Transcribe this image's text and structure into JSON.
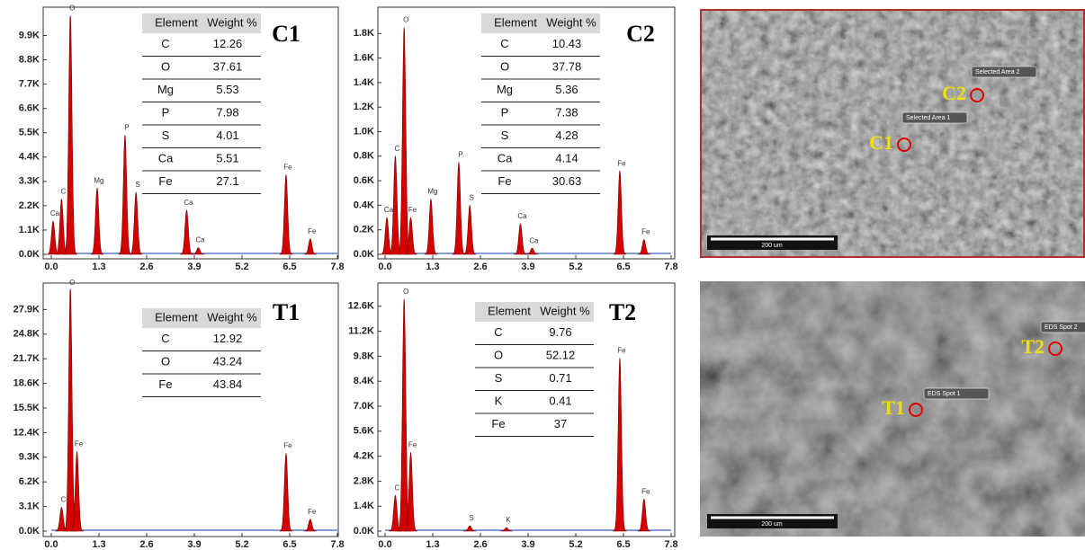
{
  "chart_data": [
    {
      "type": "spectrum",
      "label": "C1",
      "color": "#d40000",
      "xlim": [
        0,
        7.8
      ],
      "xticks": [
        {
          "value": 0,
          "label": "0.0"
        },
        1.3,
        2.6,
        3.9,
        5.2,
        6.5,
        7.8
      ],
      "ylim": [
        0,
        11100
      ],
      "yticks": [
        {
          "value": 0,
          "label": "0.0K"
        },
        {
          "value": 1100,
          "label": "1.1K"
        },
        {
          "value": 2200,
          "label": "2.2K"
        },
        {
          "value": 3300,
          "label": "3.3K"
        },
        {
          "value": 4400,
          "label": "4.4K"
        },
        {
          "value": 5500,
          "label": "5.5K"
        },
        {
          "value": 6600,
          "label": "6.6K"
        },
        {
          "value": 7700,
          "label": "7.7K"
        },
        {
          "value": 8800,
          "label": "8.8K"
        },
        {
          "value": 9900,
          "label": "9.9K"
        }
      ],
      "peaks": {
        "x": [
          0.05,
          0.28,
          0.52,
          1.25,
          2.01,
          2.31,
          3.69,
          4.01,
          6.4,
          7.06
        ],
        "values": [
          1500,
          2500,
          10800,
          3000,
          5400,
          2800,
          2000,
          300,
          3600,
          700
        ],
        "labels": [
          "Ca",
          "C",
          "O",
          "Mg",
          "P",
          "S",
          "Ca",
          "Ca",
          "Fe",
          "Fe"
        ]
      },
      "table": {
        "header": [
          "Element",
          "Weight %"
        ],
        "rows": [
          [
            "C",
            12.26
          ],
          [
            "O",
            37.61
          ],
          [
            "Mg",
            5.53
          ],
          [
            "P",
            7.98
          ],
          [
            "S",
            4.01
          ],
          [
            "Ca",
            5.51
          ],
          [
            "Fe",
            27.1
          ]
        ]
      }
    },
    {
      "type": "spectrum",
      "label": "C2",
      "color": "#d40000",
      "xlim": [
        0,
        7.8
      ],
      "xticks": [
        {
          "value": 0,
          "label": "0.0"
        },
        1.3,
        2.6,
        3.9,
        5.2,
        6.5,
        7.8
      ],
      "ylim": [
        0,
        2000
      ],
      "yticks": [
        {
          "value": 0,
          "label": "0.0K"
        },
        {
          "value": 200,
          "label": "0.2K"
        },
        {
          "value": 400,
          "label": "0.4K"
        },
        {
          "value": 600,
          "label": "0.6K"
        },
        {
          "value": 800,
          "label": "0.8K"
        },
        {
          "value": 1000,
          "label": "1.0K"
        },
        {
          "value": 1200,
          "label": "1.2K"
        },
        {
          "value": 1400,
          "label": "1.4K"
        },
        {
          "value": 1600,
          "label": "1.6K"
        },
        {
          "value": 1800,
          "label": "1.8K"
        }
      ],
      "peaks": {
        "x": [
          0.05,
          0.28,
          0.52,
          0.7,
          1.25,
          2.01,
          2.31,
          3.69,
          4.01,
          6.4,
          7.06
        ],
        "values": [
          300,
          800,
          1850,
          300,
          450,
          750,
          400,
          250,
          50,
          680,
          120
        ],
        "labels": [
          "Ca",
          "C",
          "O",
          "Fe",
          "Mg",
          "P",
          "S",
          "Ca",
          "Ca",
          "Fe",
          "Fe"
        ]
      },
      "table": {
        "header": [
          "Element",
          "Weight %"
        ],
        "rows": [
          [
            "C",
            10.43
          ],
          [
            "O",
            37.78
          ],
          [
            "Mg",
            5.36
          ],
          [
            "P",
            7.38
          ],
          [
            "S",
            4.28
          ],
          [
            "Ca",
            4.14
          ],
          [
            "Fe",
            30.63
          ]
        ]
      }
    },
    {
      "type": "spectrum",
      "label": "T1",
      "color": "#d40000",
      "xlim": [
        0,
        7.8
      ],
      "xticks": [
        {
          "value": 0,
          "label": "0.0"
        },
        1.3,
        2.6,
        3.9,
        5.2,
        6.5,
        7.8
      ],
      "ylim": [
        0,
        31000
      ],
      "yticks": [
        {
          "value": 0,
          "label": "0.0K"
        },
        {
          "value": 3100,
          "label": "3.1K"
        },
        {
          "value": 6200,
          "label": "6.2K"
        },
        {
          "value": 9300,
          "label": "9.3K"
        },
        {
          "value": 12400,
          "label": "12.4K"
        },
        {
          "value": 15500,
          "label": "15.5K"
        },
        {
          "value": 18600,
          "label": "18.6K"
        },
        {
          "value": 21700,
          "label": "21.7K"
        },
        {
          "value": 24800,
          "label": "24.8K"
        },
        {
          "value": 27900,
          "label": "27.9K"
        }
      ],
      "peaks": {
        "x": [
          0.28,
          0.52,
          0.7,
          6.4,
          7.06
        ],
        "values": [
          3000,
          30500,
          10000,
          9800,
          1500
        ],
        "labels": [
          "C",
          "O",
          "Fe",
          "Fe",
          "Fe"
        ]
      },
      "table": {
        "header": [
          "Element",
          "Weight %"
        ],
        "rows": [
          [
            "C",
            12.92
          ],
          [
            "O",
            43.24
          ],
          [
            "Fe",
            43.84
          ]
        ]
      }
    },
    {
      "type": "spectrum",
      "label": "T2",
      "color": "#d40000",
      "xlim": [
        0,
        7.8
      ],
      "xticks": [
        {
          "value": 0,
          "label": "0.0"
        },
        1.3,
        2.6,
        3.9,
        5.2,
        6.5,
        7.8
      ],
      "ylim": [
        0,
        13800
      ],
      "yticks": [
        {
          "value": 0,
          "label": "0.0K"
        },
        {
          "value": 1400,
          "label": "1.4K"
        },
        {
          "value": 2800,
          "label": "2.8K"
        },
        {
          "value": 4200,
          "label": "4.2K"
        },
        {
          "value": 5600,
          "label": "5.6K"
        },
        {
          "value": 7000,
          "label": "7.0K"
        },
        {
          "value": 8400,
          "label": "8.4K"
        },
        {
          "value": 9800,
          "label": "9.8K"
        },
        {
          "value": 11200,
          "label": "11.2K"
        },
        {
          "value": 12600,
          "label": "12.6K"
        }
      ],
      "peaks": {
        "x": [
          0.28,
          0.52,
          0.7,
          2.31,
          3.31,
          6.4,
          7.06
        ],
        "values": [
          2000,
          13000,
          4400,
          300,
          200,
          9700,
          1800
        ],
        "labels": [
          "C",
          "O",
          "Fe",
          "S",
          "K",
          "Fe",
          "Fe"
        ]
      },
      "table": {
        "header": [
          "Element",
          "Weight %"
        ],
        "rows": [
          [
            "C",
            9.76
          ],
          [
            "O",
            52.12
          ],
          [
            "S",
            0.71
          ],
          [
            "K",
            0.41
          ],
          [
            "Fe",
            37
          ]
        ]
      }
    }
  ],
  "sem_images": [
    {
      "markers": [
        {
          "label": "C2",
          "tag": "Selected Area 2"
        },
        {
          "label": "C1",
          "tag": "Selected Area 1"
        }
      ],
      "scale_bar": "200 um"
    },
    {
      "markers": [
        {
          "label": "T2",
          "tag": "EDS Spot 2"
        },
        {
          "label": "T1",
          "tag": "EDS Spot 1"
        }
      ],
      "scale_bar": "200 um"
    }
  ]
}
